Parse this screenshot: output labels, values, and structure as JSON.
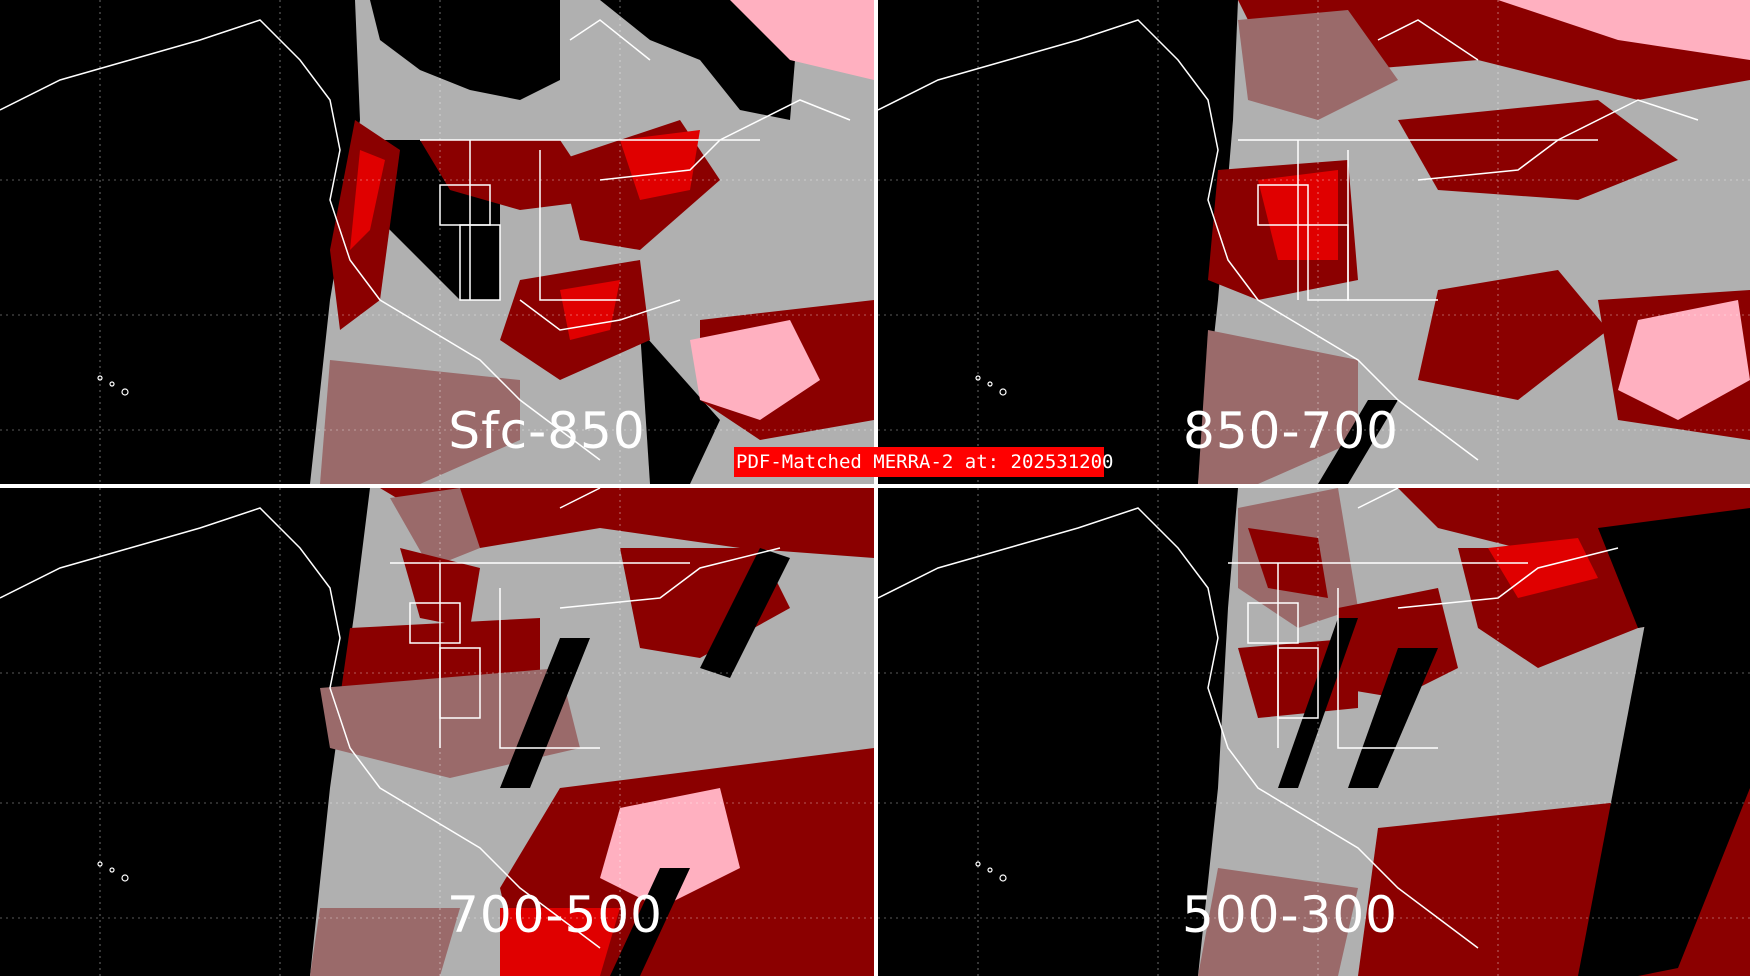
{
  "title": "PDF-Matched MERRA-2 at: 202531200",
  "colors": {
    "background": "#000000",
    "no_data": "#000000",
    "gray": "#b0b0b0",
    "dark_red": "#8b0000",
    "red": "#e00000",
    "pink": "#ffb0c0",
    "mauve": "#9a6a6a",
    "boundaries": "#ffffff",
    "banner": "#ff0000"
  },
  "panels": [
    {
      "label": "Sfc-850"
    },
    {
      "label": "850-700"
    },
    {
      "label": "700-500"
    },
    {
      "label": "500-300"
    }
  ]
}
